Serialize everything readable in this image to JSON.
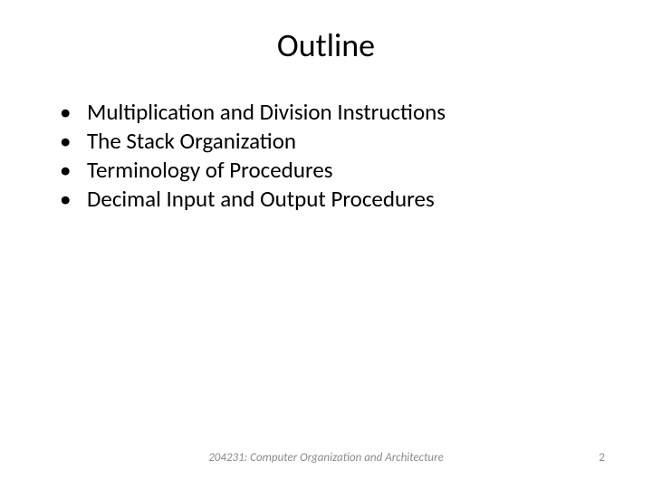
{
  "slide": {
    "title": "Outline",
    "bullets": [
      "Multiplication and Division Instructions",
      "The Stack Organization",
      "Terminology of Procedures",
      "Decimal Input and Output Procedures"
    ],
    "footer_center": "204231: Computer Organization and Architecture",
    "page_number": "2"
  },
  "style": {
    "background_color": "#ffffff",
    "text_color": "#000000",
    "footer_color": "#8a8a8a",
    "title_fontsize": 36,
    "bullet_fontsize": 25,
    "footer_fontsize": 13,
    "font_family": "Calibri"
  }
}
